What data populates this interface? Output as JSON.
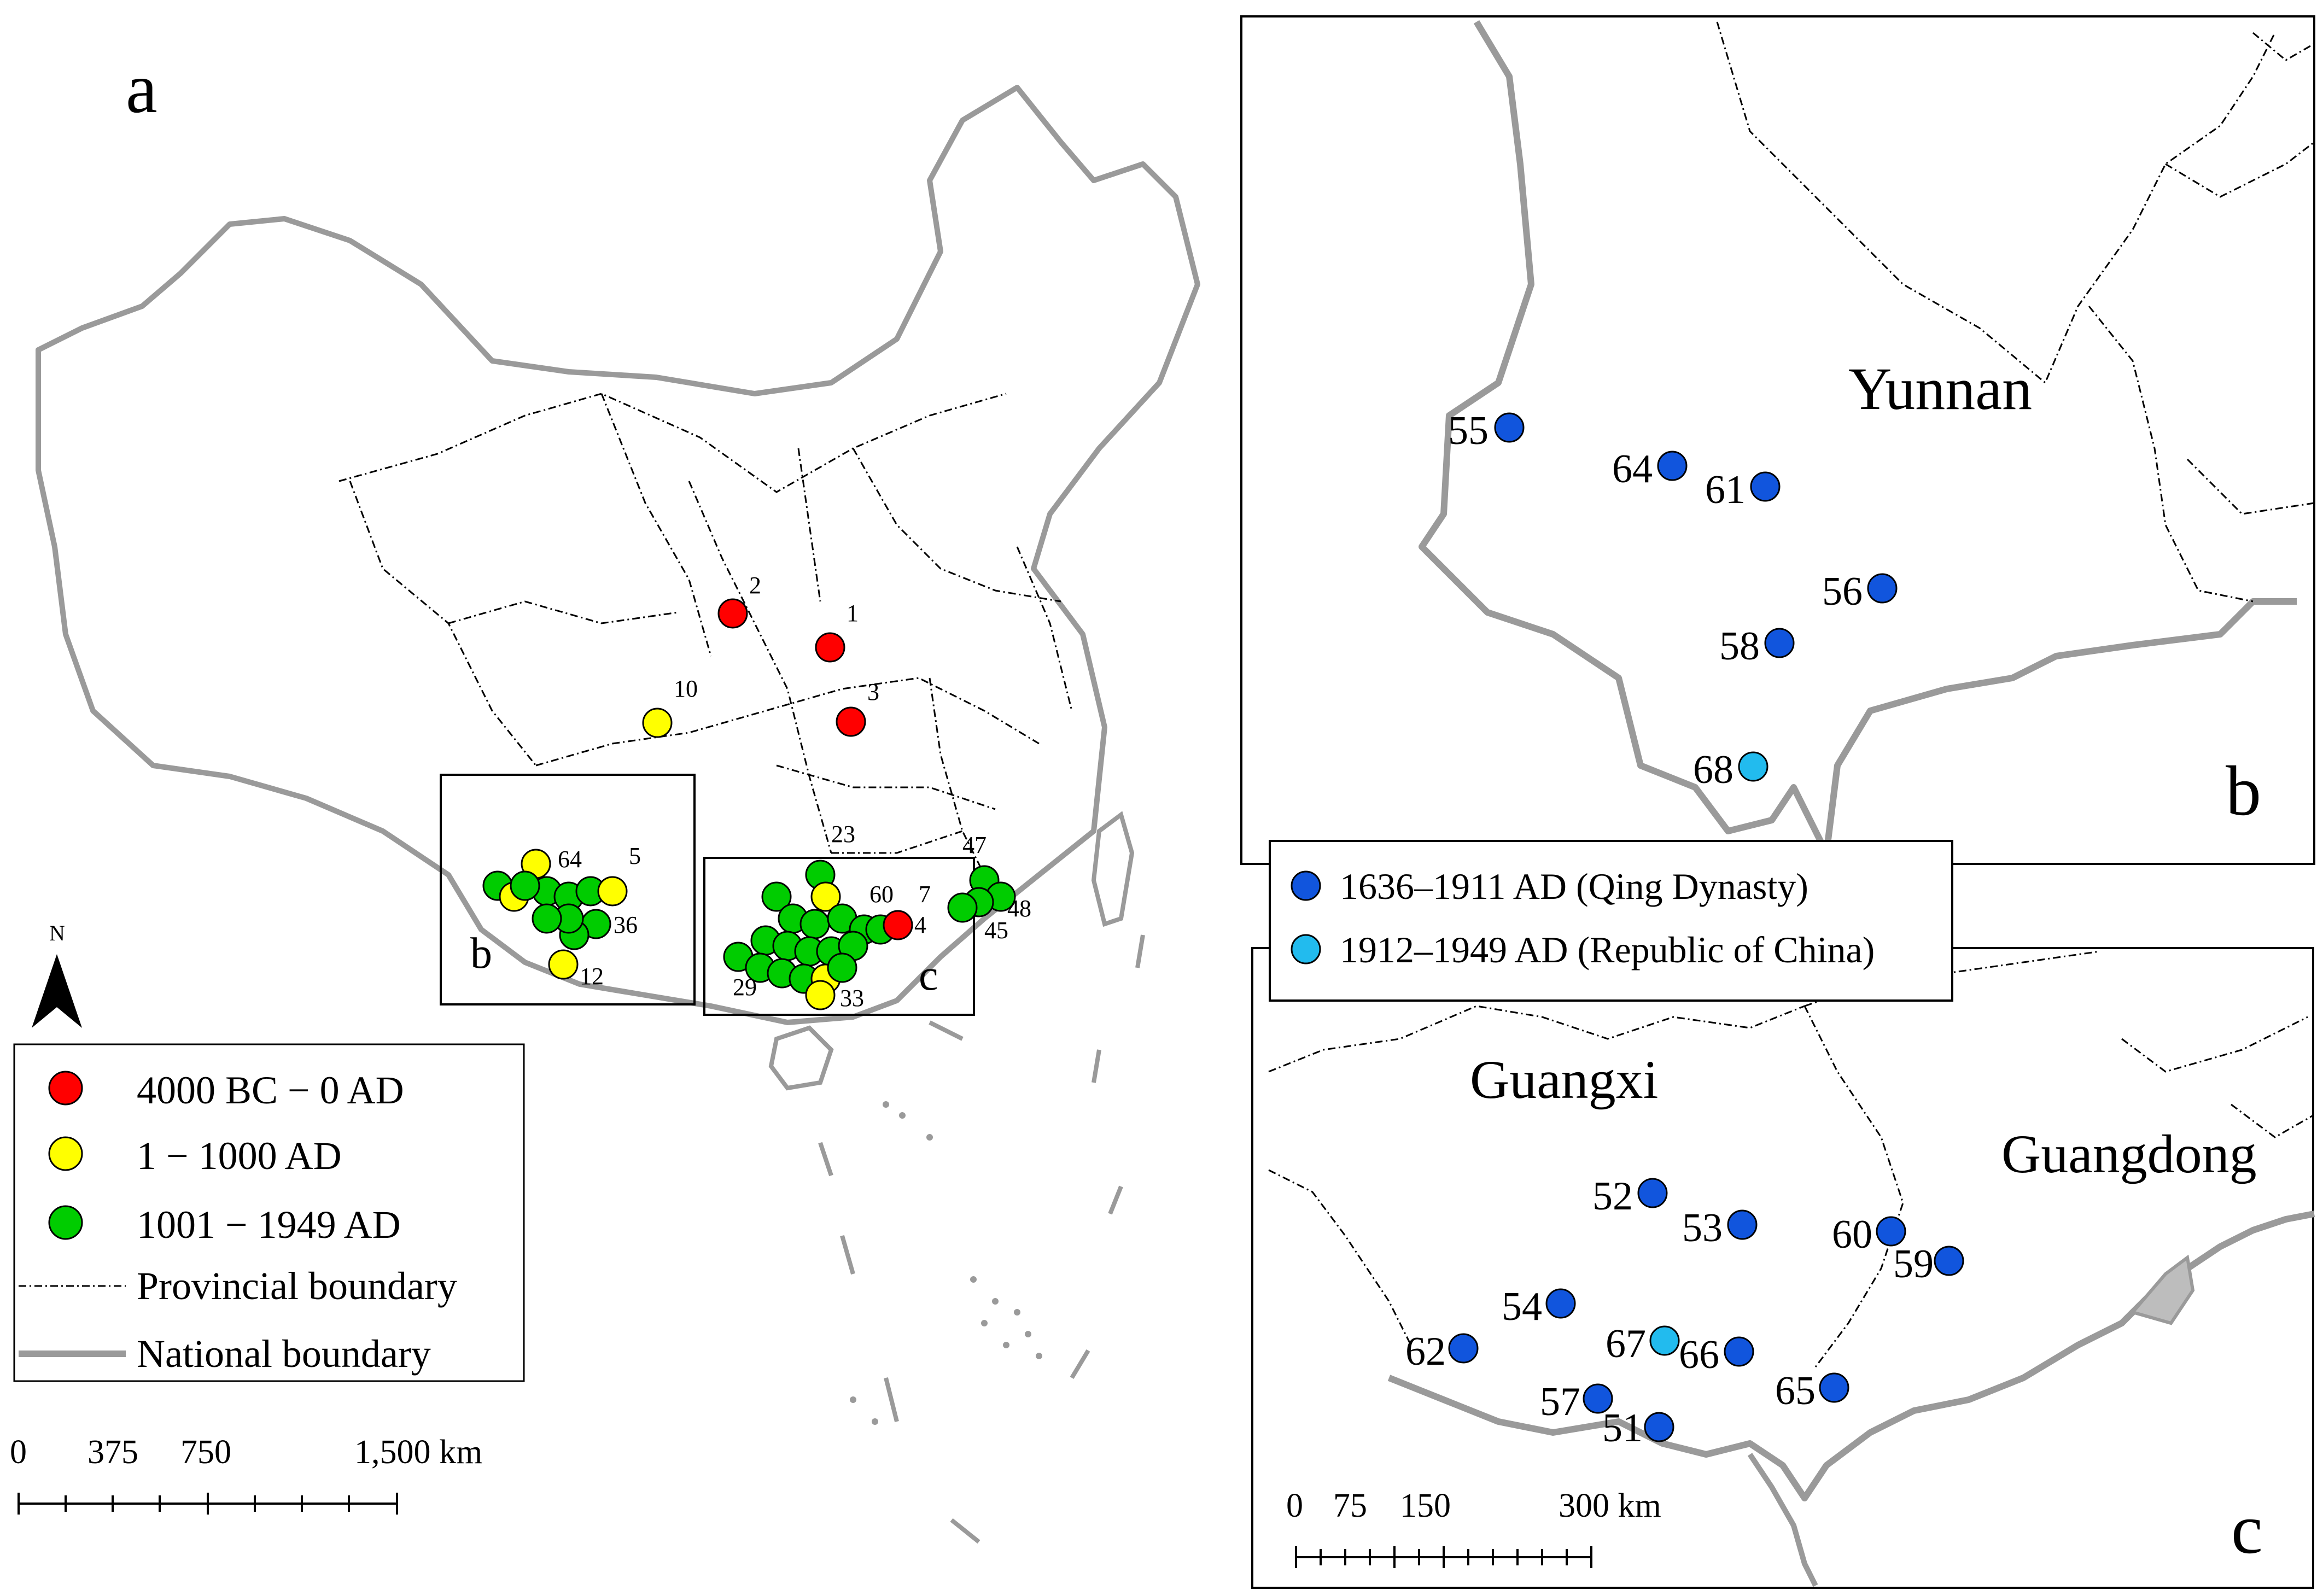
{
  "panel_a": {
    "label": "a",
    "north_label": "N",
    "inset_b_label": "b",
    "inset_c_label": "c",
    "legend": {
      "items": [
        {
          "label": "4000 BC − 0 AD",
          "color": "#ff0000"
        },
        {
          "label": "1 − 1000 AD",
          "color": "#ffff00"
        },
        {
          "label": "1001 − 1949  AD",
          "color": "#00cc00"
        }
      ],
      "provincial": "Provincial boundary",
      "national": "National boundary"
    },
    "scale": {
      "ticks": [
        "0",
        "375",
        "750",
        "1,500 km"
      ]
    },
    "sites": [
      {
        "id": "1",
        "color": "#ff0000"
      },
      {
        "id": "2",
        "color": "#ff0000"
      },
      {
        "id": "3",
        "color": "#ff0000"
      },
      {
        "id": "4",
        "color": "#ff0000"
      },
      {
        "id": "5",
        "color": "#ffff00"
      },
      {
        "id": "7",
        "color": "#00cc00"
      },
      {
        "id": "10",
        "color": "#ffff00"
      },
      {
        "id": "12",
        "color": "#ffff00"
      },
      {
        "id": "23",
        "color": "#00cc00"
      },
      {
        "id": "29",
        "color": "#00cc00"
      },
      {
        "id": "33",
        "color": "#00cc00"
      },
      {
        "id": "36",
        "color": "#00cc00"
      },
      {
        "id": "45",
        "color": "#00cc00"
      },
      {
        "id": "47",
        "color": "#00cc00"
      },
      {
        "id": "48",
        "color": "#00cc00"
      },
      {
        "id": "60",
        "color": "#00cc00"
      },
      {
        "id": "64",
        "color": "#00cc00"
      }
    ]
  },
  "panel_b": {
    "label": "b",
    "region": "Yunnan",
    "sites": [
      {
        "id": "55",
        "period": "qing"
      },
      {
        "id": "64",
        "period": "qing"
      },
      {
        "id": "61",
        "period": "qing"
      },
      {
        "id": "56",
        "period": "qing"
      },
      {
        "id": "58",
        "period": "qing"
      },
      {
        "id": "68",
        "period": "roc"
      }
    ]
  },
  "legend_bc": {
    "items": [
      {
        "label": "1636–1911 AD (Qing Dynasty)",
        "color": "#1155dd"
      },
      {
        "label": "1912–1949 AD (Republic of China)",
        "color": "#22bbee"
      }
    ]
  },
  "panel_c": {
    "label": "c",
    "region_1": "Guangxi",
    "region_2": "Guangdong",
    "scale": {
      "ticks": [
        "0",
        "75",
        "150",
        "300 km"
      ]
    },
    "sites": [
      {
        "id": "52",
        "period": "qing"
      },
      {
        "id": "53",
        "period": "qing"
      },
      {
        "id": "60",
        "period": "qing"
      },
      {
        "id": "59",
        "period": "qing"
      },
      {
        "id": "54",
        "period": "qing"
      },
      {
        "id": "67",
        "period": "roc"
      },
      {
        "id": "66",
        "period": "qing"
      },
      {
        "id": "62",
        "period": "qing"
      },
      {
        "id": "57",
        "period": "qing"
      },
      {
        "id": "51",
        "period": "qing"
      },
      {
        "id": "65",
        "period": "qing"
      }
    ]
  },
  "colors": {
    "qing": "#1155dd",
    "roc": "#22bbee",
    "national_boundary": "#9a9a9a",
    "provincial_boundary": "#000000"
  }
}
